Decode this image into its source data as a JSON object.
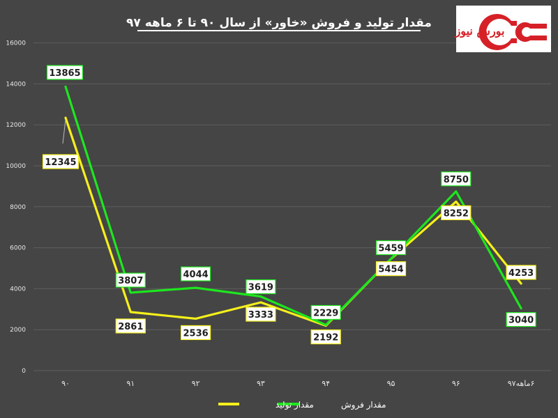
{
  "chart_data": {
    "type": "line",
    "title": "مقدار تولید و فروش «خاور» از سال ۹۰ تا ۶ ماهه ۹۷",
    "categories": [
      "۹۰",
      "۹۱",
      "۹۲",
      "۹۳",
      "۹۴",
      "۹۵",
      "۹۶",
      "۶ماهه۹۷"
    ],
    "y_ticks": [
      "0",
      "2000",
      "4000",
      "6000",
      "8000",
      "10000",
      "12000",
      "14000",
      "16000"
    ],
    "ylim": [
      0,
      16000
    ],
    "grid": true,
    "legend_position": "bottom",
    "series": [
      {
        "name": "مقدار فروش",
        "color": "#1ee61e",
        "values": [
          13865,
          3807,
          4044,
          3619,
          2229,
          5459,
          8750,
          3040
        ],
        "labels": [
          "13865",
          "3807",
          "4044",
          "3619",
          "2229",
          "5459",
          "8750",
          "3040"
        ]
      },
      {
        "name": "مقدار تولید",
        "color": "#f5f01a",
        "values": [
          12345,
          2861,
          2536,
          3333,
          2192,
          5454,
          8252,
          4253
        ],
        "labels": [
          "12345",
          "2861",
          "2536",
          "3333",
          "2192",
          "5454",
          "8252",
          "4253"
        ]
      }
    ]
  },
  "logo": {
    "text": "بورس نیوز",
    "primary_color": "#d62027"
  }
}
